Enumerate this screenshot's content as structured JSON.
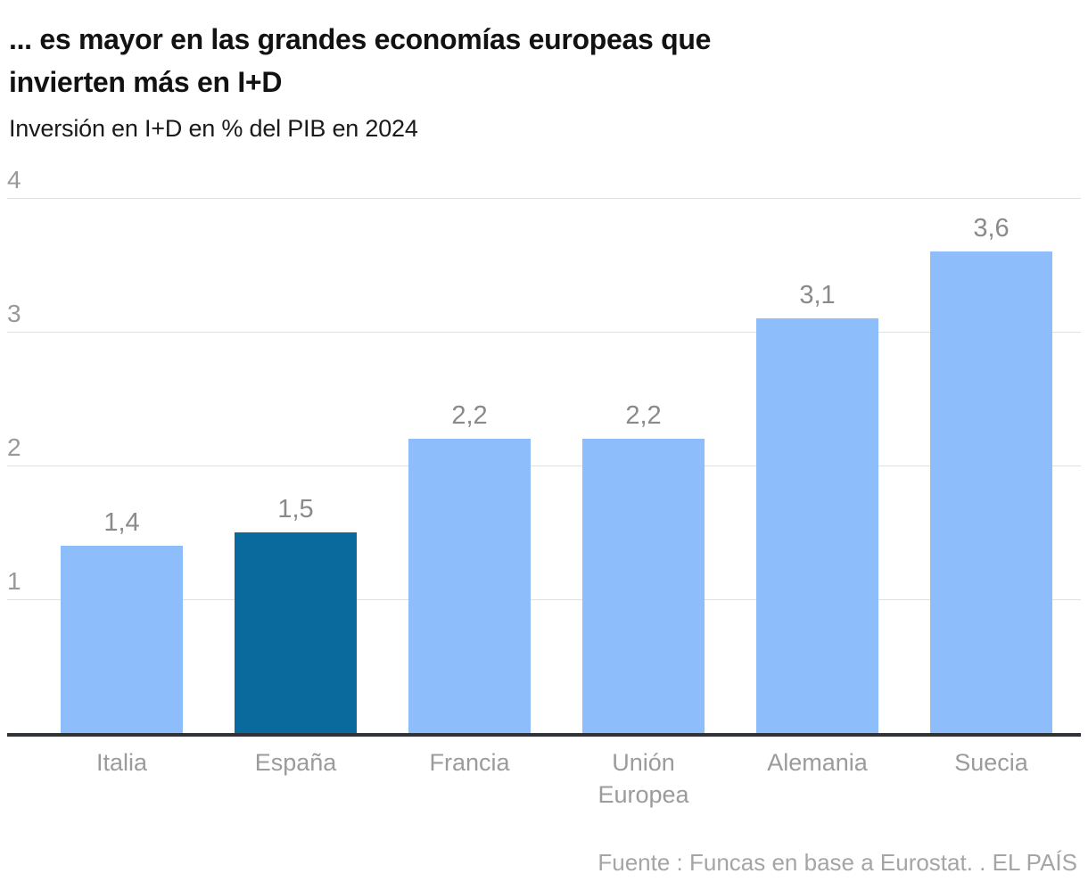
{
  "header": {
    "title_lines": [
      "... es mayor en las grandes economías europeas que",
      "invierten más en I+D"
    ],
    "subtitle": "Inversión en I+D en % del PIB en 2024"
  },
  "chart_data": {
    "type": "bar",
    "title": "... es mayor en las grandes economías europeas que invierten más en I+D",
    "subtitle": "Inversión en I+D en % del PIB en 2024",
    "categories": [
      "Italia",
      "España",
      "Francia",
      "Unión Europea",
      "Alemania",
      "Suecia"
    ],
    "values": [
      1.4,
      1.5,
      2.2,
      2.2,
      3.1,
      3.6
    ],
    "value_labels": [
      "1,4",
      "1,5",
      "2,2",
      "2,2",
      "3,1",
      "3,6"
    ],
    "ylabel": "% del PIB",
    "ylim": [
      0,
      4
    ],
    "yticks": [
      1,
      2,
      3,
      4
    ],
    "grid": true,
    "highlight_category": "España",
    "colors": {
      "bar": "#8dbdfa",
      "highlight": "#0a6a9d",
      "gridline": "#e0e0e0",
      "axis": "#2f3237",
      "tick_text": "#999999",
      "value_text": "#8a8a8a"
    }
  },
  "footer": {
    "source": "Fuente : Funcas en base a Eurostat. . EL PAÍS"
  }
}
